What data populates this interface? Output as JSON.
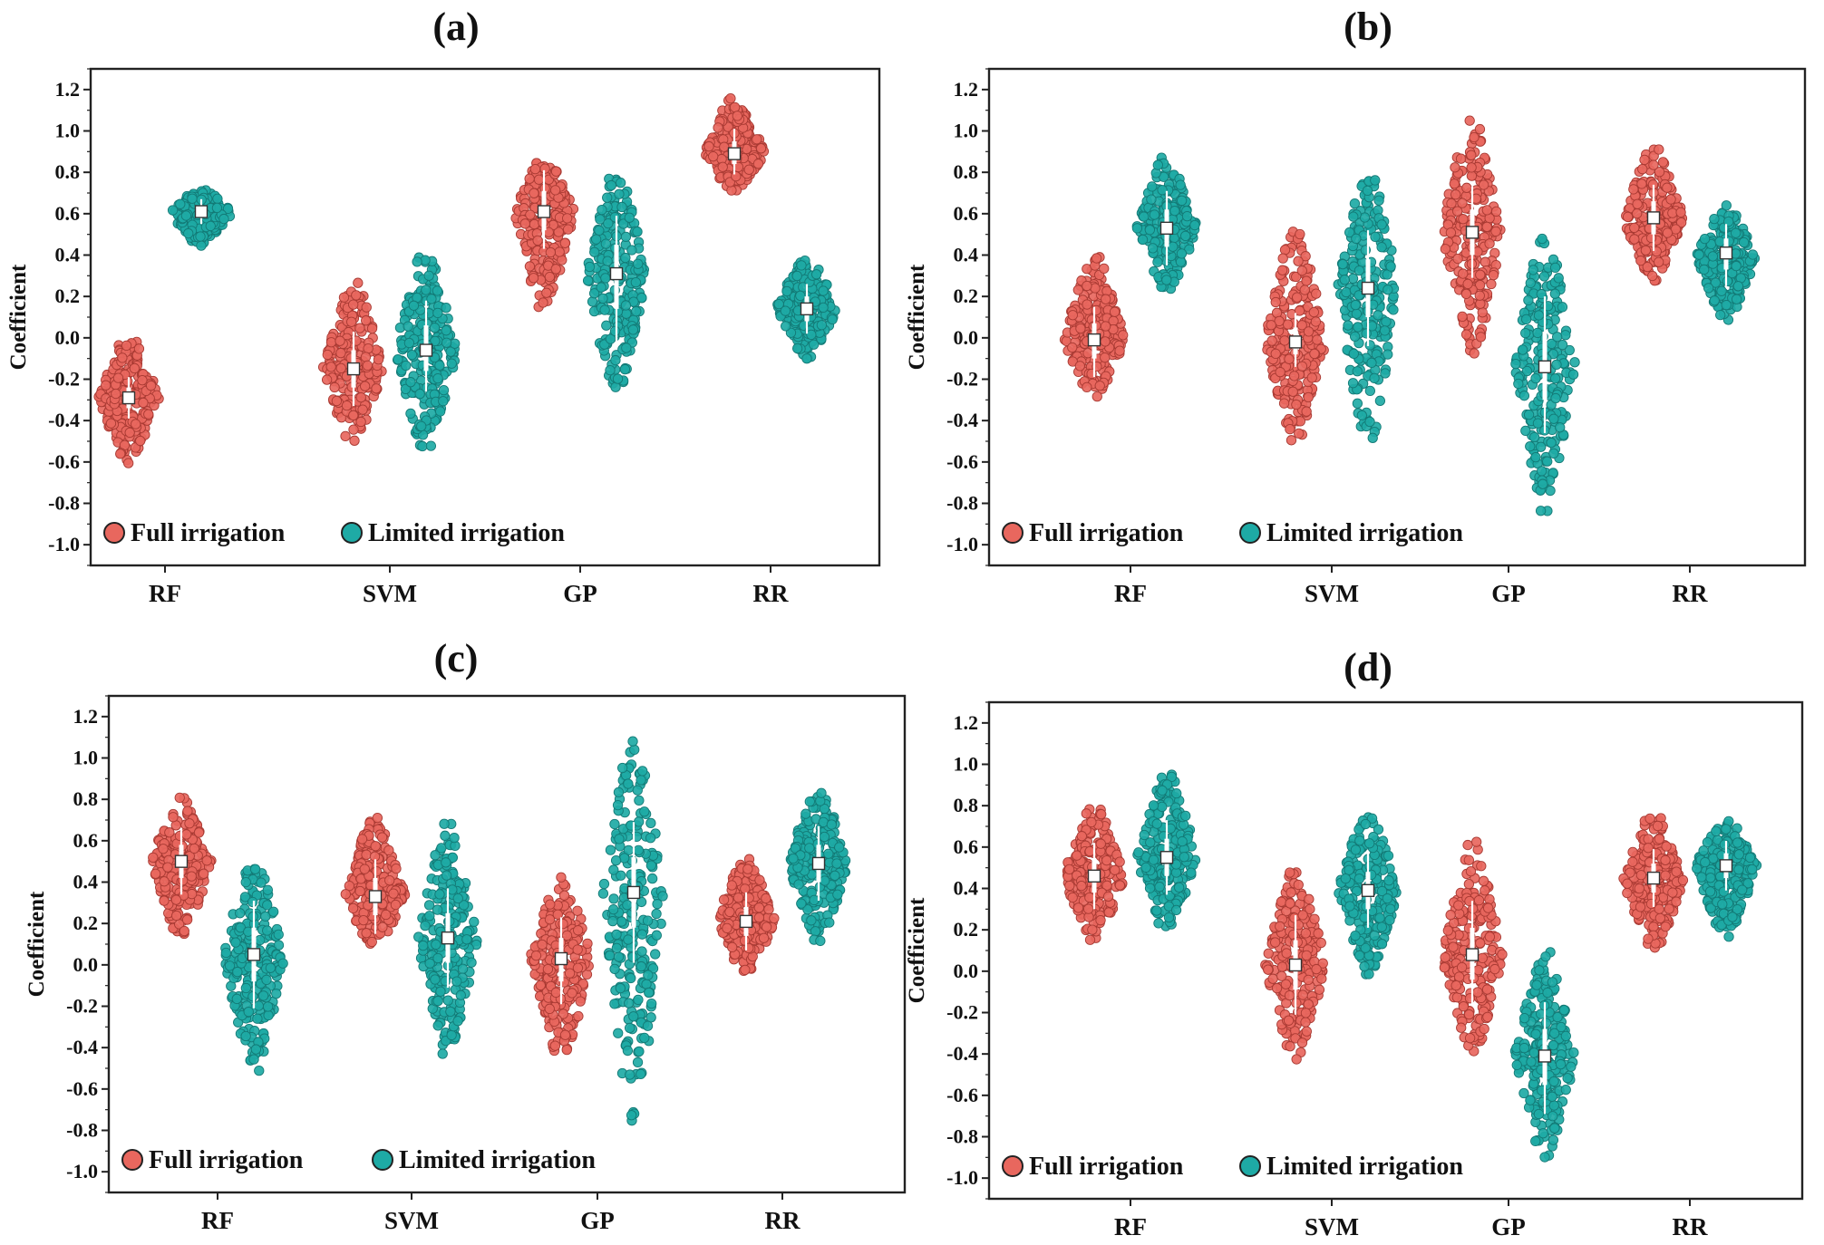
{
  "colors": {
    "full": "#e8675e",
    "full_edge": "#a93a33",
    "limited": "#1eaaa5",
    "limited_edge": "#137a76",
    "frame": "#222222"
  },
  "legend": {
    "full": "Full irrigation",
    "limited": "Limited irrigation"
  },
  "chart_data": [
    {
      "type": "swarm",
      "title": "(a)",
      "ylabel": "Coefficient",
      "ylim": [
        -1.1,
        1.3
      ],
      "yticks": [
        "-1.0",
        "-0.8",
        "-0.6",
        "-0.4",
        "-0.2",
        "0.0",
        "0.2",
        "0.4",
        "0.6",
        "0.8",
        "1.0",
        "1.2"
      ],
      "categories": [
        "RF",
        "SVM",
        "GP",
        "RR"
      ],
      "series": [
        {
          "name": "Full irrigation",
          "median": [
            -0.29,
            -0.15,
            0.61,
            0.89
          ],
          "min": [
            -0.62,
            -0.55,
            0.12,
            0.7
          ],
          "max": [
            0.03,
            0.31,
            0.9,
            1.17
          ],
          "iqr": [
            [
              -0.34,
              -0.24
            ],
            [
              -0.24,
              -0.06
            ],
            [
              0.52,
              0.71
            ],
            [
              0.84,
              0.95
            ]
          ]
        },
        {
          "name": "Limited irrigation",
          "median": [
            0.61,
            -0.06,
            0.31,
            0.14
          ],
          "min": [
            0.44,
            -0.57,
            -0.29,
            -0.11
          ],
          "max": [
            0.72,
            0.48,
            0.83,
            0.41
          ],
          "iqr": [
            [
              0.58,
              0.64
            ],
            [
              -0.16,
              0.06
            ],
            [
              0.14,
              0.45
            ],
            [
              0.08,
              0.2
            ]
          ]
        }
      ]
    },
    {
      "type": "swarm",
      "title": "(b)",
      "ylabel": "Coefficient",
      "ylim": [
        -1.1,
        1.3
      ],
      "yticks": [
        "-1.0",
        "-0.8",
        "-0.6",
        "-0.4",
        "-0.2",
        "0.0",
        "0.2",
        "0.4",
        "0.6",
        "0.8",
        "1.0",
        "1.2"
      ],
      "categories": [
        "RF",
        "SVM",
        "GP",
        "RR"
      ],
      "series": [
        {
          "name": "Full irrigation",
          "median": [
            -0.01,
            -0.02,
            0.51,
            0.58
          ],
          "min": [
            -0.3,
            -0.52,
            -0.12,
            0.27
          ],
          "max": [
            0.41,
            0.56,
            1.11,
            0.93
          ],
          "iqr": [
            [
              -0.1,
              0.07
            ],
            [
              -0.08,
              0.05
            ],
            [
              0.4,
              0.62
            ],
            [
              0.5,
              0.66
            ]
          ]
        },
        {
          "name": "Limited irrigation",
          "median": [
            0.53,
            0.24,
            -0.14,
            0.41
          ],
          "min": [
            0.2,
            -0.54,
            -0.85,
            0.07
          ],
          "max": [
            0.9,
            0.86,
            0.55,
            0.64
          ],
          "iqr": [
            [
              0.44,
              0.62
            ],
            [
              0.1,
              0.38
            ],
            [
              -0.3,
              0.03
            ],
            [
              0.33,
              0.48
            ]
          ]
        }
      ]
    },
    {
      "type": "swarm",
      "title": "(c)",
      "ylabel": "Coefficient",
      "ylim": [
        -1.1,
        1.3
      ],
      "yticks": [
        "-1.0",
        "-0.8",
        "-0.6",
        "-0.4",
        "-0.2",
        "0.0",
        "0.2",
        "0.4",
        "0.6",
        "0.8",
        "1.0",
        "1.2"
      ],
      "categories": [
        "RF",
        "SVM",
        "GP",
        "RR"
      ],
      "series": [
        {
          "name": "Full irrigation",
          "median": [
            0.5,
            0.33,
            0.03,
            0.21
          ],
          "min": [
            0.11,
            0.07,
            -0.51,
            -0.04
          ],
          "max": [
            0.81,
            0.73,
            0.46,
            0.52
          ],
          "iqr": [
            [
              0.42,
              0.58
            ],
            [
              0.24,
              0.42
            ],
            [
              -0.08,
              0.13
            ],
            [
              0.14,
              0.28
            ]
          ]
        },
        {
          "name": "Limited irrigation",
          "median": [
            0.05,
            0.13,
            0.35,
            0.49
          ],
          "min": [
            -0.54,
            -0.46,
            -0.85,
            0.11
          ],
          "max": [
            0.53,
            0.7,
            1.15,
            0.87
          ],
          "iqr": [
            [
              -0.08,
              0.18
            ],
            [
              0.01,
              0.25
            ],
            [
              0.18,
              0.52
            ],
            [
              0.4,
              0.58
            ]
          ]
        }
      ]
    },
    {
      "type": "swarm",
      "title": "(d)",
      "ylabel": "Coefficient",
      "ylim": [
        -1.1,
        1.3
      ],
      "yticks": [
        "-1.0",
        "-0.8",
        "-0.6",
        "-0.4",
        "-0.2",
        "0.0",
        "0.2",
        "0.4",
        "0.6",
        "0.8",
        "1.0",
        "1.2"
      ],
      "categories": [
        "RF",
        "SVM",
        "GP",
        "RR"
      ],
      "series": [
        {
          "name": "Full irrigation",
          "median": [
            0.46,
            0.03,
            0.08,
            0.45
          ],
          "min": [
            0.14,
            -0.44,
            -0.43,
            0.07
          ],
          "max": [
            0.81,
            0.52,
            0.64,
            0.78
          ],
          "iqr": [
            [
              0.38,
              0.54
            ],
            [
              -0.09,
              0.15
            ],
            [
              -0.04,
              0.21
            ],
            [
              0.38,
              0.52
            ]
          ]
        },
        {
          "name": "Limited irrigation",
          "median": [
            0.55,
            0.39,
            -0.41,
            0.51
          ],
          "min": [
            0.17,
            -0.03,
            -0.93,
            0.15
          ],
          "max": [
            0.98,
            0.8,
            0.12,
            0.74
          ],
          "iqr": [
            [
              0.46,
              0.64
            ],
            [
              0.3,
              0.48
            ],
            [
              -0.55,
              -0.28
            ],
            [
              0.45,
              0.57
            ]
          ]
        }
      ]
    }
  ]
}
